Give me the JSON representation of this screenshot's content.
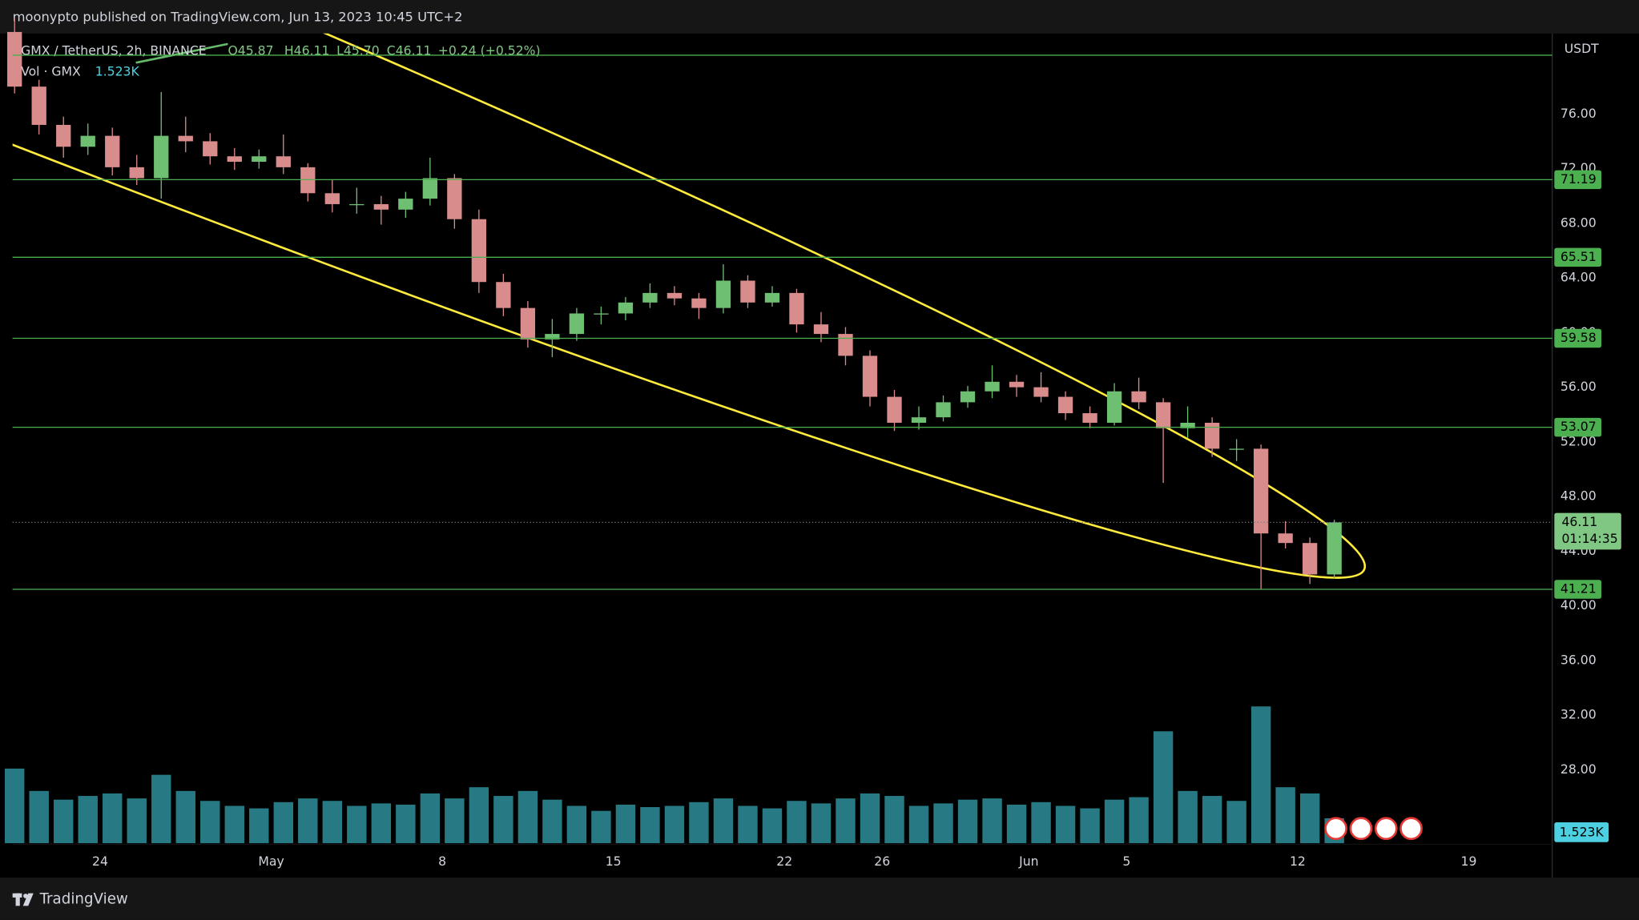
{
  "header": {
    "publisher": "moonypto published on TradingView.com, Jun 13, 2023 10:45 UTC+2"
  },
  "footer": {
    "brand": "TradingView"
  },
  "chart_data": {
    "type": "candlestick",
    "symbol": "GMX / TetherUS, 2h, BINANCE",
    "legend_open": "O45.87",
    "legend_high": "H46.11",
    "legend_low": "L45.70",
    "legend_close": "C46.11",
    "legend_change": "+0.24 (+0.52%)",
    "volume_name": "Vol · GMX",
    "volume_label": "1.523K",
    "currency": "USDT",
    "up_color": "#6fbf73",
    "down_color": "#d98c8c",
    "volume_color": "#2e8f9a",
    "level_color": "#4caf50",
    "x": [
      "2023-04-20",
      "2023-04-21",
      "2023-04-22",
      "2023-04-23",
      "2023-04-24",
      "2023-04-25",
      "2023-04-26",
      "2023-04-27",
      "2023-04-28",
      "2023-04-29",
      "2023-04-30",
      "2023-05-01",
      "2023-05-02",
      "2023-05-03",
      "2023-05-04",
      "2023-05-05",
      "2023-05-06",
      "2023-05-07",
      "2023-05-08",
      "2023-05-09",
      "2023-05-10",
      "2023-05-11",
      "2023-05-12",
      "2023-05-13",
      "2023-05-14",
      "2023-05-15",
      "2023-05-16",
      "2023-05-17",
      "2023-05-18",
      "2023-05-19",
      "2023-05-20",
      "2023-05-21",
      "2023-05-22",
      "2023-05-23",
      "2023-05-24",
      "2023-05-25",
      "2023-05-26",
      "2023-05-27",
      "2023-05-28",
      "2023-05-29",
      "2023-05-30",
      "2023-05-31",
      "2023-06-01",
      "2023-06-02",
      "2023-06-03",
      "2023-06-04",
      "2023-06-05",
      "2023-06-06",
      "2023-06-07",
      "2023-06-08",
      "2023-06-09",
      "2023-06-10",
      "2023-06-11",
      "2023-06-12",
      "2023-06-13"
    ],
    "open": [
      82.0,
      78.0,
      75.2,
      73.6,
      74.4,
      72.1,
      71.3,
      74.4,
      74.0,
      72.9,
      72.5,
      72.9,
      72.1,
      70.2,
      69.4,
      69.4,
      69.0,
      69.8,
      71.3,
      68.3,
      63.7,
      61.8,
      59.5,
      59.9,
      61.4,
      61.4,
      62.2,
      62.9,
      62.5,
      61.8,
      63.8,
      62.2,
      62.9,
      60.6,
      59.9,
      58.3,
      55.3,
      53.4,
      53.8,
      54.9,
      55.7,
      56.4,
      56.0,
      55.3,
      54.1,
      53.4,
      55.7,
      54.9,
      53.0,
      53.4,
      51.5,
      51.5,
      45.3,
      44.6,
      42.3
    ],
    "high": [
      83.0,
      78.5,
      75.8,
      75.3,
      75.0,
      73.0,
      77.6,
      75.8,
      74.6,
      73.5,
      73.4,
      74.5,
      72.4,
      71.2,
      70.6,
      70.0,
      70.3,
      72.8,
      71.6,
      69.0,
      64.3,
      62.3,
      61.0,
      61.8,
      61.9,
      62.6,
      63.6,
      63.4,
      62.9,
      65.0,
      64.2,
      63.4,
      63.2,
      61.5,
      60.4,
      58.7,
      55.8,
      54.6,
      55.4,
      56.1,
      57.6,
      56.9,
      57.1,
      55.7,
      54.6,
      56.3,
      56.7,
      55.2,
      54.6,
      53.8,
      52.2,
      51.8,
      46.2,
      45.0,
      46.3
    ],
    "low": [
      77.5,
      74.5,
      72.8,
      73.0,
      71.5,
      70.8,
      69.8,
      73.2,
      72.3,
      71.9,
      72.0,
      71.6,
      69.6,
      68.8,
      68.7,
      67.9,
      68.4,
      69.3,
      67.6,
      62.9,
      61.2,
      58.9,
      58.2,
      59.4,
      60.6,
      60.9,
      61.8,
      62.0,
      61.0,
      61.4,
      61.8,
      61.9,
      60.0,
      59.3,
      57.6,
      54.6,
      52.8,
      52.9,
      53.5,
      54.5,
      55.2,
      55.3,
      54.9,
      53.6,
      53.0,
      53.2,
      54.4,
      49.0,
      52.3,
      50.9,
      50.6,
      41.2,
      44.2,
      41.6,
      42.0
    ],
    "close": [
      78.0,
      75.2,
      73.6,
      74.4,
      72.1,
      71.3,
      74.4,
      74.0,
      72.9,
      72.5,
      72.9,
      72.1,
      70.2,
      69.4,
      69.4,
      69.0,
      69.8,
      71.3,
      68.3,
      63.7,
      61.8,
      59.5,
      59.9,
      61.4,
      61.4,
      62.2,
      62.9,
      62.5,
      61.8,
      63.8,
      62.2,
      62.9,
      60.6,
      59.9,
      58.3,
      55.3,
      53.4,
      53.8,
      54.9,
      55.7,
      56.4,
      56.0,
      55.3,
      54.1,
      53.4,
      55.7,
      54.9,
      53.0,
      53.4,
      51.5,
      51.5,
      45.3,
      44.6,
      42.3,
      46.11
    ],
    "volume": [
      60,
      42,
      35,
      38,
      40,
      36,
      55,
      42,
      34,
      30,
      28,
      33,
      36,
      34,
      30,
      32,
      31,
      40,
      36,
      45,
      38,
      42,
      35,
      30,
      26,
      31,
      29,
      30,
      33,
      36,
      30,
      28,
      34,
      32,
      36,
      40,
      38,
      30,
      32,
      35,
      36,
      31,
      33,
      30,
      28,
      35,
      37,
      90,
      42,
      38,
      34,
      110,
      45,
      40,
      20
    ],
    "vlim": [
      0,
      300
    ],
    "ylim": [
      20.11,
      81.89
    ],
    "yticks": [
      {
        "value": 28,
        "label": "28.00"
      },
      {
        "value": 32,
        "label": "32.00"
      },
      {
        "value": 36,
        "label": "36.00"
      },
      {
        "value": 40,
        "label": "40.00"
      },
      {
        "value": 44,
        "label": "44.00"
      },
      {
        "value": 48,
        "label": "48.00"
      },
      {
        "value": 52,
        "label": "52.00"
      },
      {
        "value": 56,
        "label": "56.00"
      },
      {
        "value": 60,
        "label": "60.00"
      },
      {
        "value": 64,
        "label": "64.00"
      },
      {
        "value": 68,
        "label": "68.00"
      },
      {
        "value": 72,
        "label": "72.00"
      },
      {
        "value": 76,
        "label": "76.00"
      }
    ],
    "xlim": [
      "2023-04-20T10:00",
      "2023-06-22T10:00"
    ],
    "xticks": [
      {
        "value": "2023-04-24",
        "label": "24"
      },
      {
        "value": "2023-05-01",
        "label": "May"
      },
      {
        "value": "2023-05-08",
        "label": "8"
      },
      {
        "value": "2023-05-15",
        "label": "15"
      },
      {
        "value": "2023-05-22",
        "label": "22"
      },
      {
        "value": "2023-05-26",
        "label": "26"
      },
      {
        "value": "2023-06-01",
        "label": "Jun"
      },
      {
        "value": "2023-06-05",
        "label": "5"
      },
      {
        "value": "2023-06-12",
        "label": "12"
      },
      {
        "value": "2023-06-19",
        "label": "19"
      }
    ],
    "levels": [
      71.19,
      65.51,
      59.58,
      53.07,
      41.21
    ],
    "unlabeled_levels": [
      80.3
    ],
    "last_price": 46.11,
    "countdown": "01:14:35"
  }
}
